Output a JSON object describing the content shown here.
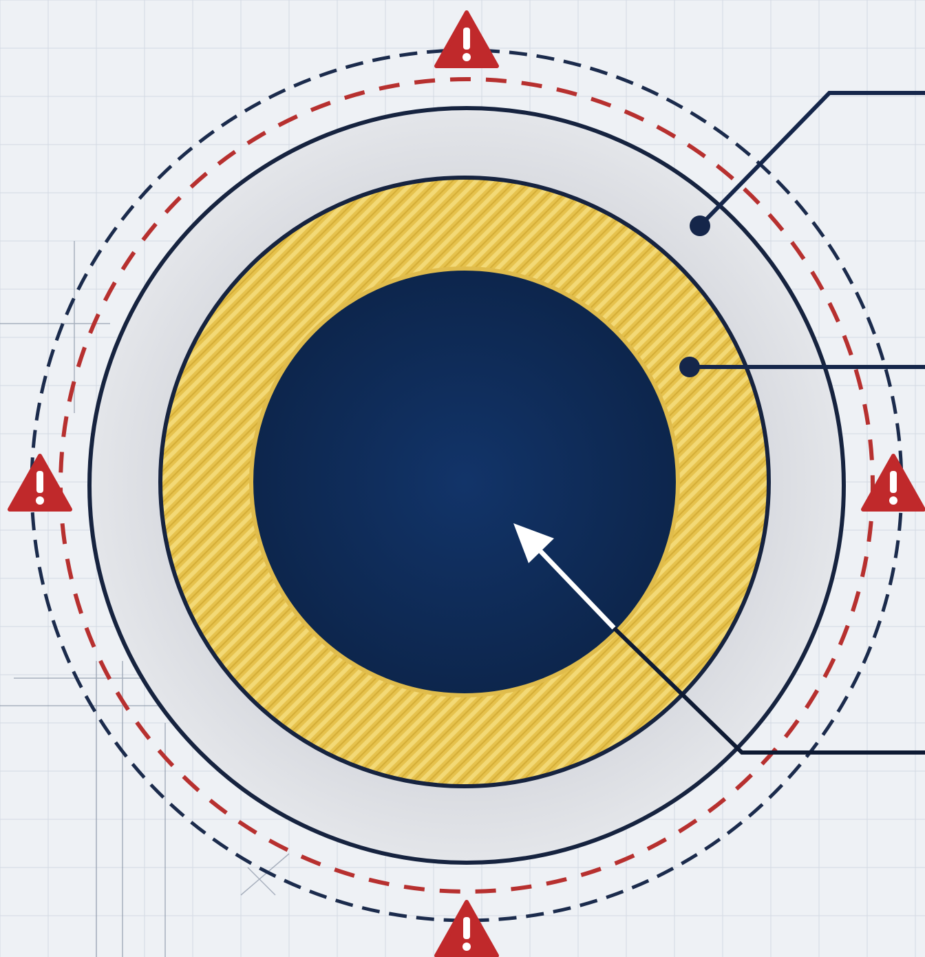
{
  "diagram": {
    "kind": "concentric-ring-schematic",
    "rings": [
      {
        "id": "outer-boundary-dashed",
        "style": "dashed",
        "color": "#1b2b4c"
      },
      {
        "id": "warning-boundary-dashed",
        "style": "dashed",
        "color": "#b7302f"
      },
      {
        "id": "outer-gray-ring",
        "fill": "#d9dbe0",
        "stroke": "#16233f"
      },
      {
        "id": "gold-striped-ring",
        "fill": "#e6c24d",
        "stroke": "#16233f"
      },
      {
        "id": "navy-core",
        "fill": "#0f2b57"
      }
    ],
    "warning_markers": [
      {
        "position": "top",
        "icon": "warning-triangle-icon"
      },
      {
        "position": "left",
        "icon": "warning-triangle-icon"
      },
      {
        "position": "right",
        "icon": "warning-triangle-icon"
      },
      {
        "position": "bottom",
        "icon": "warning-triangle-icon"
      }
    ],
    "callouts": [
      {
        "target": "outer-gray-ring",
        "marker": "dot"
      },
      {
        "target": "gold-striped-ring",
        "marker": "dot"
      },
      {
        "target": "navy-core",
        "marker": "arrow"
      }
    ],
    "colors": {
      "background": "#eef1f5",
      "grid": "#d3d9e2",
      "navy": "#15264a",
      "gold": "#e6c24d",
      "gray_ring": "#d9dbe0",
      "warning_red": "#c0292b"
    }
  }
}
